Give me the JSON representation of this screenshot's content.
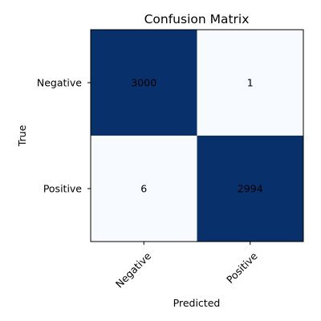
{
  "chart_data": {
    "type": "heatmap",
    "title": "Confusion Matrix",
    "xlabel": "Predicted",
    "ylabel": "True",
    "x_categories": [
      "Negative",
      "Positive"
    ],
    "y_categories": [
      "Negative",
      "Positive"
    ],
    "values": [
      [
        3000,
        1
      ],
      [
        6,
        2994
      ]
    ],
    "colormap": "Blues",
    "color_low": "#f7fbff",
    "color_high": "#08306b",
    "x_tick_rotation_deg": 45,
    "grid": false
  }
}
